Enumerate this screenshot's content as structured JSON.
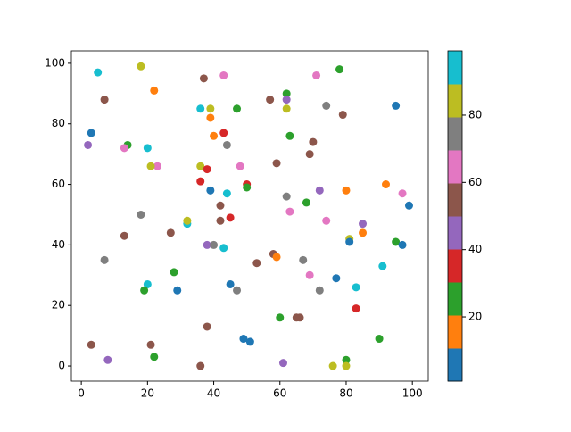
{
  "chart_data": {
    "type": "scatter",
    "x": [
      5,
      18,
      22,
      7,
      3,
      2,
      14,
      13,
      20,
      23,
      21,
      18,
      13,
      7,
      20,
      19,
      29,
      28,
      27,
      32,
      32,
      3,
      8,
      21,
      22,
      36,
      37,
      43,
      36,
      39,
      39,
      47,
      43,
      40,
      44,
      36,
      38,
      48,
      36,
      50,
      50,
      39,
      44,
      42,
      45,
      42,
      38,
      40,
      43,
      38,
      45,
      47,
      49,
      51,
      57,
      62,
      62,
      62,
      63,
      59,
      70,
      69,
      62,
      72,
      63,
      68,
      58,
      59,
      67,
      53,
      69,
      72,
      60,
      65,
      66,
      61,
      71,
      78,
      74,
      79,
      95,
      80,
      92,
      97,
      99,
      74,
      85,
      85,
      81,
      81,
      95,
      97,
      91,
      77,
      83,
      83,
      90,
      80,
      76,
      80
    ],
    "y": [
      97,
      99,
      91,
      88,
      77,
      73,
      73,
      72,
      72,
      66,
      66,
      50,
      43,
      35,
      27,
      25,
      25,
      31,
      44,
      47,
      48,
      7,
      2,
      7,
      3,
      0,
      95,
      96,
      85,
      85,
      82,
      85,
      77,
      76,
      73,
      66,
      65,
      66,
      61,
      60,
      59,
      58,
      57,
      53,
      49,
      48,
      40,
      40,
      39,
      13,
      27,
      25,
      9,
      8,
      88,
      90,
      88,
      85,
      76,
      67,
      74,
      70,
      56,
      58,
      51,
      54,
      37,
      36,
      35,
      34,
      30,
      25,
      16,
      16,
      16,
      1,
      96,
      98,
      86,
      83,
      86,
      58,
      60,
      57,
      53,
      48,
      47,
      44,
      42,
      41,
      41,
      40,
      33,
      29,
      26,
      19,
      9,
      2,
      0,
      0
    ],
    "c": [
      95,
      85,
      15,
      55,
      5,
      45,
      25,
      65,
      95,
      65,
      85,
      75,
      55,
      75,
      95,
      25,
      5,
      25,
      55,
      95,
      85,
      55,
      45,
      55,
      25,
      55,
      55,
      65,
      95,
      85,
      15,
      25,
      35,
      15,
      75,
      85,
      35,
      65,
      35,
      35,
      25,
      5,
      95,
      55,
      35,
      55,
      45,
      75,
      95,
      55,
      5,
      75,
      5,
      5,
      55,
      25,
      45,
      85,
      25,
      55,
      55,
      55,
      75,
      45,
      65,
      25,
      55,
      15,
      75,
      55,
      65,
      75,
      25,
      55,
      55,
      45,
      65,
      25,
      75,
      55,
      5,
      15,
      15,
      65,
      5,
      65,
      45,
      15,
      85,
      5,
      25,
      5,
      95,
      5,
      95,
      35,
      25,
      25,
      85,
      85
    ],
    "xlim": [
      -3,
      104.8
    ],
    "ylim": [
      -5,
      104.1
    ],
    "xticks": [
      0,
      20,
      40,
      60,
      80,
      100
    ],
    "yticks": [
      0,
      20,
      40,
      60,
      80,
      100
    ],
    "colorbar": {
      "clim": [
        0.9,
        99.1
      ],
      "ticks": [
        20,
        40,
        60,
        80
      ],
      "colors": [
        "#1f77b4",
        "#ff7f0e",
        "#2ca02c",
        "#d62728",
        "#9467bd",
        "#8c564b",
        "#e377c2",
        "#7f7f7f",
        "#bcbd22",
        "#17becf"
      ]
    }
  }
}
